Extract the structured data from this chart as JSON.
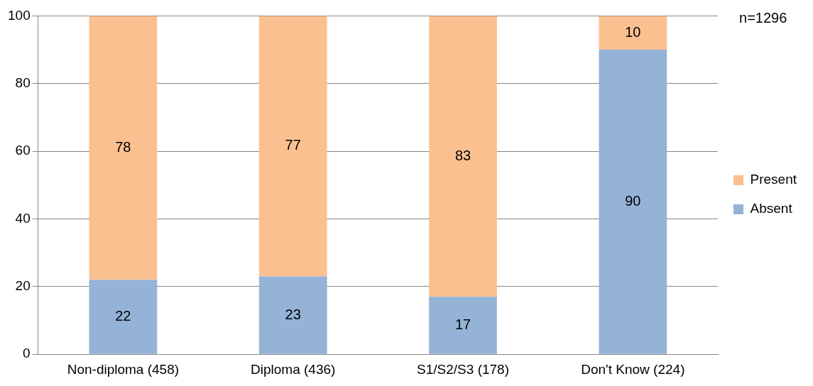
{
  "chart_data": {
    "type": "bar",
    "stacked": true,
    "categories": [
      "Non-diploma (458)",
      "Diploma (436)",
      "S1/S2/S3 (178)",
      "Don't Know (224)"
    ],
    "series": [
      {
        "name": "Absent",
        "color": "#95b3d7",
        "values": [
          22,
          23,
          17,
          90
        ]
      },
      {
        "name": "Present",
        "color": "#fac090",
        "values": [
          78,
          77,
          83,
          10
        ]
      }
    ],
    "ylim": [
      0,
      100
    ],
    "yticks": [
      0,
      20,
      40,
      60,
      80,
      100
    ],
    "grid": "y",
    "legend": "right",
    "data_labels": true,
    "annotations": [
      "n=1296"
    ]
  }
}
